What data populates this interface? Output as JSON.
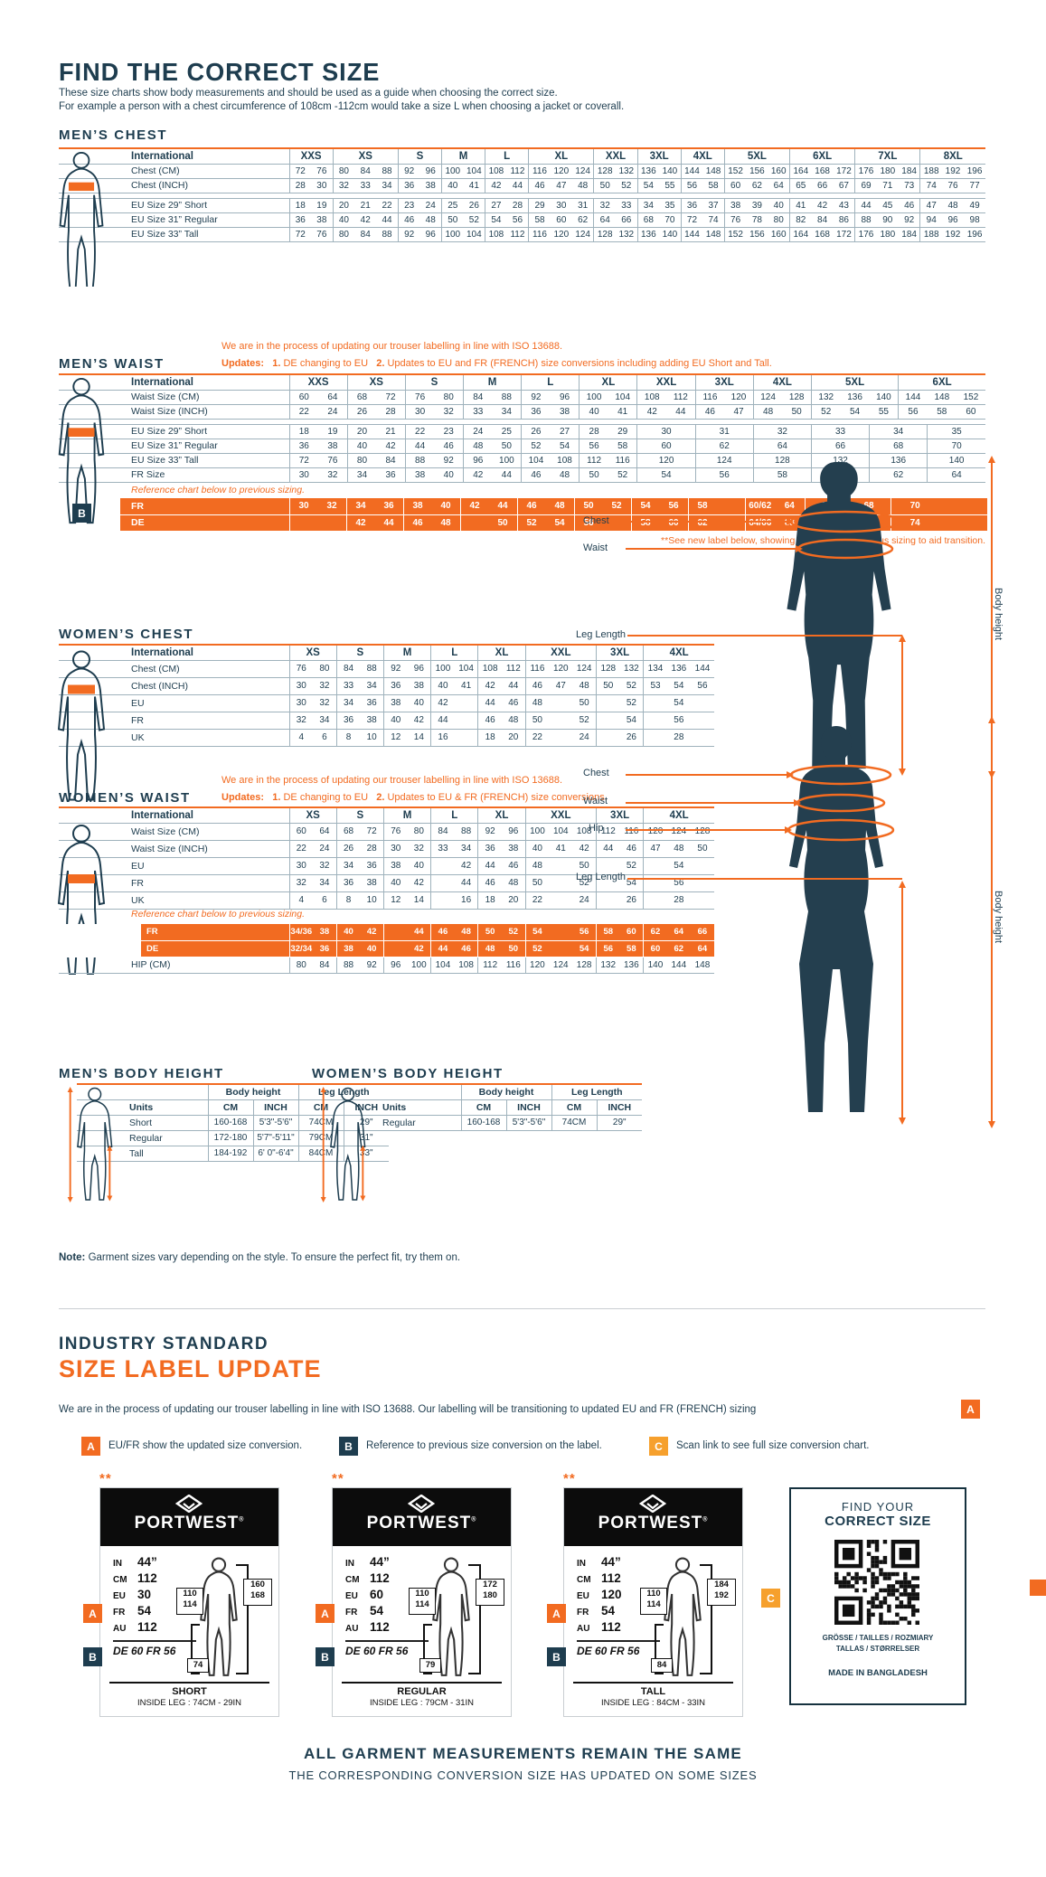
{
  "colors": {
    "navy": "#1E3D4F",
    "orange": "#F26B21",
    "amber": "#F6A02D",
    "table_line": "#9FB2BC",
    "black": "#0c0c0c"
  },
  "header": {
    "title": "FIND THE CORRECT SIZE",
    "intro1": "These size charts show body measurements and should be used as a guide when choosing the correct size.",
    "intro2": "For example a person with a chest circumference of 108cm -112cm would take a size L when choosing a jacket or coverall."
  },
  "mens_chest": {
    "heading": "MEN’S CHEST",
    "intl": "International",
    "groups": [
      {
        "l": "XXS",
        "s": 2
      },
      {
        "l": "XS",
        "s": 3
      },
      {
        "l": "S",
        "s": 2
      },
      {
        "l": "M",
        "s": 2
      },
      {
        "l": "L",
        "s": 2
      },
      {
        "l": "XL",
        "s": 3
      },
      {
        "l": "XXL",
        "s": 2
      },
      {
        "l": "3XL",
        "s": 2
      },
      {
        "l": "4XL",
        "s": 2
      },
      {
        "l": "5XL",
        "s": 3
      },
      {
        "l": "6XL",
        "s": 3
      },
      {
        "l": "7XL",
        "s": 3
      },
      {
        "l": "8XL",
        "s": 3
      }
    ],
    "rows": [
      {
        "label": "Chest (CM)",
        "cells": [
          72,
          76,
          80,
          84,
          88,
          92,
          96,
          100,
          104,
          108,
          112,
          116,
          120,
          124,
          128,
          132,
          136,
          140,
          144,
          148,
          152,
          156,
          160,
          164,
          168,
          172,
          176,
          180,
          184,
          188,
          192,
          196
        ]
      },
      {
        "label": "Chest (INCH)",
        "cells": [
          28,
          30,
          32,
          33,
          34,
          36,
          38,
          40,
          41,
          42,
          44,
          46,
          47,
          48,
          50,
          52,
          54,
          55,
          56,
          58,
          60,
          62,
          64,
          65,
          66,
          67,
          69,
          71,
          73,
          74,
          76,
          77
        ]
      },
      {
        "gap": true
      },
      {
        "label": "EU Size 29” Short",
        "cells": [
          18,
          19,
          20,
          21,
          22,
          23,
          24,
          25,
          26,
          27,
          28,
          29,
          30,
          31,
          32,
          33,
          34,
          35,
          36,
          37,
          38,
          39,
          40,
          41,
          42,
          43,
          44,
          45,
          46,
          47,
          48,
          49
        ]
      },
      {
        "label": "EU Size 31” Regular",
        "cells": [
          36,
          38,
          40,
          42,
          44,
          46,
          48,
          50,
          52,
          54,
          56,
          58,
          60,
          62,
          64,
          66,
          68,
          70,
          72,
          74,
          76,
          78,
          80,
          82,
          84,
          86,
          88,
          90,
          92,
          94,
          96,
          98
        ]
      },
      {
        "label": "EU Size 33” Tall",
        "cells": [
          72,
          76,
          80,
          84,
          88,
          92,
          96,
          100,
          104,
          108,
          112,
          116,
          120,
          124,
          128,
          132,
          136,
          140,
          144,
          148,
          152,
          156,
          160,
          164,
          168,
          172,
          176,
          180,
          184,
          188,
          192,
          196
        ]
      }
    ]
  },
  "mens_waist": {
    "heading": "MEN’S WAIST",
    "note1": "We are in the process of updating our trouser labelling in line with ISO 13688.",
    "updates_label": "Updates:",
    "u1n": "1.",
    "u1": "DE changing to EU",
    "u2n": "2.",
    "u2": "Updates to EU and FR (FRENCH) size conversions including adding EU Short and Tall.",
    "intl": "International",
    "groups": [
      {
        "l": "XXS",
        "s": 2
      },
      {
        "l": "XS",
        "s": 2
      },
      {
        "l": "S",
        "s": 2
      },
      {
        "l": "M",
        "s": 2
      },
      {
        "l": "L",
        "s": 2
      },
      {
        "l": "XL",
        "s": 2
      },
      {
        "l": "XXL",
        "s": 2
      },
      {
        "l": "3XL",
        "s": 2
      },
      {
        "l": "4XL",
        "s": 2
      },
      {
        "l": "5XL",
        "s": 3
      },
      {
        "l": "6XL",
        "s": 3
      }
    ],
    "rows": [
      {
        "label": "Waist Size (CM)",
        "cells": [
          60,
          64,
          68,
          72,
          76,
          80,
          84,
          88,
          92,
          96,
          100,
          104,
          108,
          112,
          116,
          120,
          124,
          128,
          132,
          136,
          140,
          144,
          148,
          152
        ]
      },
      {
        "label": "Waist Size (INCH)",
        "cells": [
          22,
          24,
          26,
          28,
          30,
          32,
          33,
          34,
          36,
          38,
          40,
          41,
          42,
          44,
          46,
          47,
          48,
          50,
          52,
          54,
          55,
          56,
          58,
          60
        ]
      },
      {
        "gap": true
      },
      {
        "label": "EU Size 29” Short",
        "cells": [
          18,
          19,
          20,
          21,
          22,
          23,
          24,
          25,
          26,
          27,
          28,
          29,
          {
            "v": 30,
            "s": 2
          },
          {
            "v": 31,
            "s": 2
          },
          {
            "v": 32,
            "s": 2
          },
          {
            "v": 33,
            "s": 2
          },
          {
            "v": 34,
            "s": 2
          },
          {
            "v": 35,
            "s": 2
          }
        ]
      },
      {
        "label": "EU Size 31” Regular",
        "cells": [
          36,
          38,
          40,
          42,
          44,
          46,
          48,
          50,
          52,
          54,
          56,
          58,
          {
            "v": 60,
            "s": 2
          },
          {
            "v": 62,
            "s": 2
          },
          {
            "v": 64,
            "s": 2
          },
          {
            "v": 66,
            "s": 2
          },
          {
            "v": 68,
            "s": 2
          },
          {
            "v": 70,
            "s": 2
          }
        ]
      },
      {
        "label": "EU Size 33” Tall",
        "cells": [
          72,
          76,
          80,
          84,
          88,
          92,
          96,
          100,
          104,
          108,
          112,
          116,
          {
            "v": 120,
            "s": 2
          },
          {
            "v": 124,
            "s": 2
          },
          {
            "v": 128,
            "s": 2
          },
          {
            "v": 132,
            "s": 2
          },
          {
            "v": 136,
            "s": 2
          },
          {
            "v": 140,
            "s": 2
          }
        ]
      },
      {
        "label": "FR Size",
        "cells": [
          30,
          32,
          34,
          36,
          38,
          40,
          42,
          44,
          46,
          48,
          50,
          52,
          {
            "v": 54,
            "s": 2
          },
          {
            "v": 56,
            "s": 2
          },
          {
            "v": 58,
            "s": 2
          },
          {
            "v": 60,
            "s": 2
          },
          {
            "v": 62,
            "s": 2
          },
          {
            "v": 64,
            "s": 2
          }
        ]
      }
    ],
    "ref_note": "Reference chart below to previous sizing.",
    "ref_badge": "B",
    "ref": {
      "rows": [
        {
          "label": "FR",
          "cells": [
            [
              "30",
              "32"
            ],
            [
              "34",
              "36"
            ],
            [
              "38",
              "40"
            ],
            [
              "42",
              "44"
            ],
            [
              "46",
              "48"
            ],
            [
              "50",
              "52"
            ],
            [
              "54",
              "56"
            ],
            [
              "58",
              ""
            ],
            [
              "60/62",
              "64"
            ],
            [
              "66",
              "68"
            ],
            [
              "70",
              ""
            ]
          ]
        },
        {
          "label": "DE",
          "cells": [
            [
              "",
              ""
            ],
            [
              "42",
              "44"
            ],
            [
              "46",
              "48"
            ],
            [
              "",
              "50"
            ],
            [
              "52",
              "54"
            ],
            [
              "56",
              ""
            ],
            [
              "58",
              "60"
            ],
            [
              "62",
              ""
            ],
            [
              "64/66",
              "68"
            ],
            [
              "70",
              "72"
            ],
            [
              "74",
              ""
            ]
          ]
        }
      ]
    },
    "footnote": "**See new label below, showing updated and previous sizing to aid transition."
  },
  "womens_chest": {
    "heading": "WOMEN’S CHEST",
    "intl": "International",
    "groups": [
      {
        "l": "XS",
        "s": 2
      },
      {
        "l": "S",
        "s": 2
      },
      {
        "l": "M",
        "s": 2
      },
      {
        "l": "L",
        "s": 2
      },
      {
        "l": "XL",
        "s": 2
      },
      {
        "l": "XXL",
        "s": 3
      },
      {
        "l": "3XL",
        "s": 2
      },
      {
        "l": "4XL",
        "s": 3
      }
    ],
    "rows": [
      {
        "label": "Chest (CM)",
        "cells": [
          76,
          80,
          84,
          88,
          92,
          96,
          100,
          104,
          108,
          112,
          116,
          120,
          124,
          128,
          132,
          134,
          136,
          144
        ]
      },
      {
        "label": "Chest (INCH)",
        "cells": [
          30,
          32,
          33,
          34,
          36,
          38,
          40,
          41,
          42,
          44,
          46,
          47,
          48,
          50,
          52,
          53,
          54,
          56
        ]
      },
      {
        "label": "EU",
        "cells": [
          30,
          32,
          34,
          36,
          38,
          40,
          42,
          "",
          44,
          46,
          48,
          "",
          50,
          "",
          52,
          "",
          54,
          ""
        ]
      },
      {
        "label": "FR",
        "cells": [
          32,
          34,
          36,
          38,
          40,
          42,
          44,
          "",
          46,
          48,
          50,
          "",
          52,
          "",
          54,
          "",
          56,
          ""
        ]
      },
      {
        "label": "UK",
        "cells": [
          4,
          6,
          8,
          10,
          12,
          14,
          16,
          "",
          18,
          20,
          22,
          "",
          24,
          "",
          26,
          "",
          28,
          ""
        ]
      }
    ]
  },
  "womens_waist": {
    "heading": "WOMEN’S WAIST",
    "note1": "We are in the process of updating our trouser labelling in line with ISO 13688.",
    "updates_label": "Updates:",
    "u1n": "1.",
    "u1": "DE changing to EU",
    "u2n": "2.",
    "u2": "Updates to EU & FR (FRENCH) size conversions.",
    "intl": "International",
    "groups": [
      {
        "l": "XS",
        "s": 2
      },
      {
        "l": "S",
        "s": 2
      },
      {
        "l": "M",
        "s": 2
      },
      {
        "l": "L",
        "s": 2
      },
      {
        "l": "XL",
        "s": 2
      },
      {
        "l": "XXL",
        "s": 3
      },
      {
        "l": "3XL",
        "s": 2
      },
      {
        "l": "4XL",
        "s": 3
      }
    ],
    "rows": [
      {
        "label": "Waist Size (CM)",
        "cells": [
          60,
          64,
          68,
          72,
          76,
          80,
          84,
          88,
          92,
          96,
          100,
          104,
          108,
          112,
          116,
          120,
          124,
          128
        ]
      },
      {
        "label": "Waist Size (INCH)",
        "cells": [
          22,
          24,
          26,
          28,
          30,
          32,
          33,
          34,
          36,
          38,
          40,
          41,
          42,
          44,
          46,
          47,
          48,
          50
        ]
      },
      {
        "label": "EU",
        "cells": [
          30,
          32,
          34,
          36,
          38,
          40,
          "",
          42,
          44,
          46,
          48,
          "",
          50,
          "",
          52,
          "",
          54,
          ""
        ]
      },
      {
        "label": "FR",
        "cells": [
          32,
          34,
          36,
          38,
          40,
          42,
          "",
          44,
          46,
          48,
          50,
          "",
          52,
          "",
          54,
          "",
          56,
          ""
        ]
      },
      {
        "label": "UK",
        "cells": [
          4,
          6,
          8,
          10,
          12,
          14,
          "",
          16,
          18,
          20,
          22,
          "",
          24,
          "",
          26,
          "",
          28,
          ""
        ]
      }
    ],
    "ref_note": "Reference chart below to previous sizing.",
    "ref_badge": "B",
    "ref_rows": [
      {
        "label": "FR",
        "cls": "ref",
        "cells": [
          "34/36",
          38,
          40,
          42,
          "",
          44,
          46,
          48,
          50,
          52,
          54,
          "",
          56,
          58,
          60,
          62,
          64,
          66
        ]
      },
      {
        "label": "DE",
        "cls": "ref",
        "cells": [
          "32/34",
          36,
          38,
          40,
          "",
          42,
          44,
          46,
          48,
          50,
          52,
          "",
          54,
          56,
          58,
          60,
          62,
          64
        ]
      },
      {
        "label": "HIP (CM)",
        "cells": [
          80,
          84,
          88,
          92,
          96,
          100,
          104,
          108,
          112,
          116,
          120,
          124,
          128,
          132,
          136,
          140,
          144,
          148
        ]
      }
    ]
  },
  "body_height": {
    "mens_heading": "MEN’S BODY HEIGHT",
    "womens_heading": "WOMEN’S BODY HEIGHT",
    "col1": "Body height",
    "col2": "Leg Length",
    "units_label": "Units",
    "cm": "CM",
    "inch": "INCH",
    "mens_rows": [
      [
        "Short",
        "160-168",
        "5'3\"-5'6\"",
        "74CM",
        "29\""
      ],
      [
        "Regular",
        "172-180",
        "5'7\"-5'11\"",
        "79CM",
        "31\""
      ],
      [
        "Tall",
        "184-192",
        "6' 0\"-6'4\"",
        "84CM",
        "33\""
      ]
    ],
    "womens_rows": [
      [
        "Regular",
        "160-168",
        "5'3\"-5'6\"",
        "74CM",
        "29\""
      ]
    ]
  },
  "figure_labels": {
    "chest": "Chest",
    "waist": "Waist",
    "hip": "Hip",
    "leg": "Leg Length",
    "height": "Body height"
  },
  "note": {
    "bold": "Note:",
    "text": " Garment sizes vary depending on the style. To ensure the perfect fit, try them on."
  },
  "label_update": {
    "line1": "INDUSTRY STANDARD",
    "line2": "SIZE LABEL UPDATE",
    "para": "We are in the process of updating our trouser labelling in line with ISO 13688. Our labelling will be transitioning to updated EU and FR (FRENCH) sizing",
    "para_badge": "A",
    "legend": [
      {
        "badge": "A",
        "text": "EU/FR show the updated size conversion."
      },
      {
        "badge": "B",
        "text": "Reference to previous size conversion on the label."
      },
      {
        "badge": "C",
        "text": "Scan link to see full size conversion chart."
      }
    ]
  },
  "labels_section": {
    "stars": "**",
    "brand": "PORTWEST",
    "reg": "®",
    "badge_a": "A",
    "badge_b": "B",
    "badge_c": "C",
    "de_fr": "DE 60 FR 56",
    "cards": [
      {
        "name": "SHORT",
        "leg": "INSIDE LEG : 74CM - 29IN",
        "rows": [
          [
            "IN",
            "44”"
          ],
          [
            "CM",
            "112"
          ],
          [
            "EU",
            "30"
          ],
          [
            "FR",
            "54"
          ],
          [
            "AU",
            "112"
          ]
        ],
        "box_side": "110|114",
        "box_height": "160|168",
        "box_leg": "74"
      },
      {
        "name": "REGULAR",
        "leg": "INSIDE LEG : 79CM - 31IN",
        "rows": [
          [
            "IN",
            "44”"
          ],
          [
            "CM",
            "112"
          ],
          [
            "EU",
            "60"
          ],
          [
            "FR",
            "54"
          ],
          [
            "AU",
            "112"
          ]
        ],
        "box_side": "110|114",
        "box_height": "172|180",
        "box_leg": "79"
      },
      {
        "name": "TALL",
        "leg": "INSIDE LEG : 84CM - 33IN",
        "rows": [
          [
            "IN",
            "44”"
          ],
          [
            "CM",
            "112"
          ],
          [
            "EU",
            "120"
          ],
          [
            "FR",
            "54"
          ],
          [
            "AU",
            "112"
          ]
        ],
        "box_side": "110|114",
        "box_height": "184|192",
        "box_leg": "84"
      }
    ],
    "qr_box": {
      "l1": "FIND YOUR",
      "l2": "CORRECT SIZE",
      "langs1": "GRÖSSE / TAILLES / ROZMIARY",
      "langs2": "TALLAS / STØRRELSER",
      "made": "MADE IN BANGLADESH"
    }
  },
  "footer": {
    "l1": "ALL GARMENT MEASUREMENTS REMAIN THE SAME",
    "l2": "THE CORRESPONDING CONVERSION SIZE HAS UPDATED ON SOME SIZES"
  }
}
